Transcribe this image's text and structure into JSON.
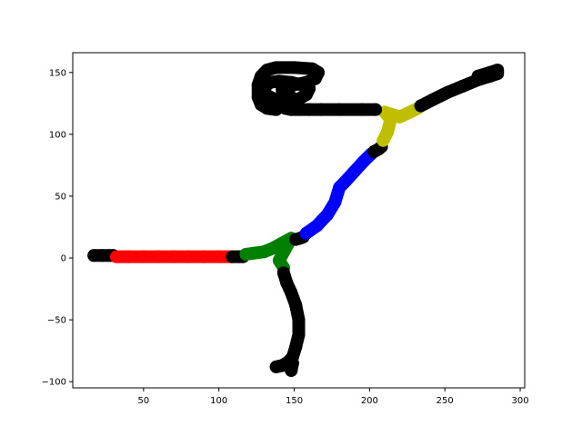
{
  "chart_data": {
    "type": "scatter",
    "title": "",
    "xlabel": "",
    "ylabel": "",
    "xlim": [
      3,
      303
    ],
    "ylim": [
      -105,
      166
    ],
    "xticks": [
      50,
      100,
      150,
      200,
      250,
      300
    ],
    "yticks": [
      -100,
      -50,
      0,
      50,
      100,
      150
    ],
    "xtick_labels": [
      "50",
      "100",
      "150",
      "200",
      "250",
      "300"
    ],
    "ytick_labels": [
      "−100",
      "−50",
      "0",
      "50",
      "100",
      "150"
    ],
    "grid": false,
    "legend": "none",
    "series": [
      {
        "color": "#000000",
        "points": [
          [
            17,
            2
          ],
          [
            22,
            2
          ],
          [
            27,
            2
          ],
          [
            30,
            2
          ]
        ]
      },
      {
        "color": "#ff0000",
        "points": [
          [
            32,
            1
          ],
          [
            40,
            1
          ],
          [
            50,
            1
          ],
          [
            60,
            1
          ],
          [
            70,
            1
          ],
          [
            80,
            1
          ],
          [
            90,
            1
          ],
          [
            100,
            1
          ],
          [
            108,
            1
          ]
        ]
      },
      {
        "color": "#000000",
        "points": [
          [
            109,
            1
          ],
          [
            113,
            1
          ],
          [
            116,
            1
          ]
        ]
      },
      {
        "color": "#008000",
        "points": [
          [
            118,
            3
          ],
          [
            124,
            4
          ],
          [
            130,
            5
          ],
          [
            136,
            8
          ],
          [
            142,
            12
          ],
          [
            148,
            16
          ],
          [
            140,
            -2
          ],
          [
            143,
            -8
          ]
        ]
      },
      {
        "color": "#000000",
        "points": [
          [
            143,
            -12
          ],
          [
            145,
            -20
          ],
          [
            148,
            -28
          ],
          [
            151,
            -38
          ],
          [
            153,
            -50
          ],
          [
            153,
            -62
          ],
          [
            151,
            -72
          ],
          [
            149,
            -80
          ],
          [
            146,
            -84
          ],
          [
            142,
            -87
          ],
          [
            138,
            -88
          ],
          [
            149,
            -85
          ],
          [
            148,
            -91
          ]
        ]
      },
      {
        "color": "#000000",
        "points": [
          [
            151,
            15
          ],
          [
            154,
            16
          ],
          [
            156,
            17
          ]
        ]
      },
      {
        "color": "#0000ff",
        "points": [
          [
            158,
            20
          ],
          [
            165,
            26
          ],
          [
            172,
            35
          ],
          [
            177,
            45
          ],
          [
            180,
            57
          ],
          [
            184,
            62
          ],
          [
            190,
            70
          ],
          [
            196,
            78
          ],
          [
            201,
            84
          ]
        ]
      },
      {
        "color": "#000000",
        "points": [
          [
            203,
            86
          ],
          [
            206,
            88
          ],
          [
            208,
            90
          ]
        ]
      },
      {
        "color": "#bfbf00",
        "points": [
          [
            209,
            95
          ],
          [
            212,
            102
          ],
          [
            214,
            112
          ],
          [
            210,
            118
          ],
          [
            220,
            114
          ],
          [
            227,
            118
          ],
          [
            232,
            121
          ]
        ]
      },
      {
        "color": "#000000",
        "points": [
          [
            234,
            123
          ],
          [
            242,
            128
          ],
          [
            252,
            134
          ],
          [
            262,
            139
          ],
          [
            272,
            144
          ],
          [
            280,
            147
          ],
          [
            285,
            149
          ],
          [
            285,
            152
          ],
          [
            280,
            150
          ],
          [
            272,
            147
          ]
        ]
      },
      {
        "color": "#000000",
        "points": [
          [
            204,
            120
          ],
          [
            195,
            120
          ],
          [
            180,
            120
          ],
          [
            168,
            120
          ],
          [
            160,
            120
          ],
          [
            154,
            120
          ],
          [
            148,
            120
          ],
          [
            144,
            121
          ],
          [
            146,
            124
          ],
          [
            152,
            128
          ],
          [
            158,
            132
          ],
          [
            160,
            137
          ],
          [
            155,
            140
          ],
          [
            148,
            142
          ],
          [
            140,
            143
          ],
          [
            134,
            142
          ],
          [
            130,
            138
          ],
          [
            131,
            132
          ],
          [
            136,
            129
          ],
          [
            142,
            128
          ],
          [
            148,
            130
          ],
          [
            146,
            133
          ],
          [
            142,
            136
          ],
          [
            144,
            139
          ],
          [
            150,
            140
          ],
          [
            158,
            142
          ],
          [
            164,
            145
          ],
          [
            166,
            150
          ],
          [
            162,
            153
          ],
          [
            150,
            154
          ],
          [
            138,
            154
          ],
          [
            132,
            152
          ],
          [
            128,
            147
          ],
          [
            126,
            140
          ],
          [
            126,
            130
          ],
          [
            128,
            124
          ],
          [
            132,
            121
          ],
          [
            138,
            120
          ]
        ]
      }
    ]
  }
}
